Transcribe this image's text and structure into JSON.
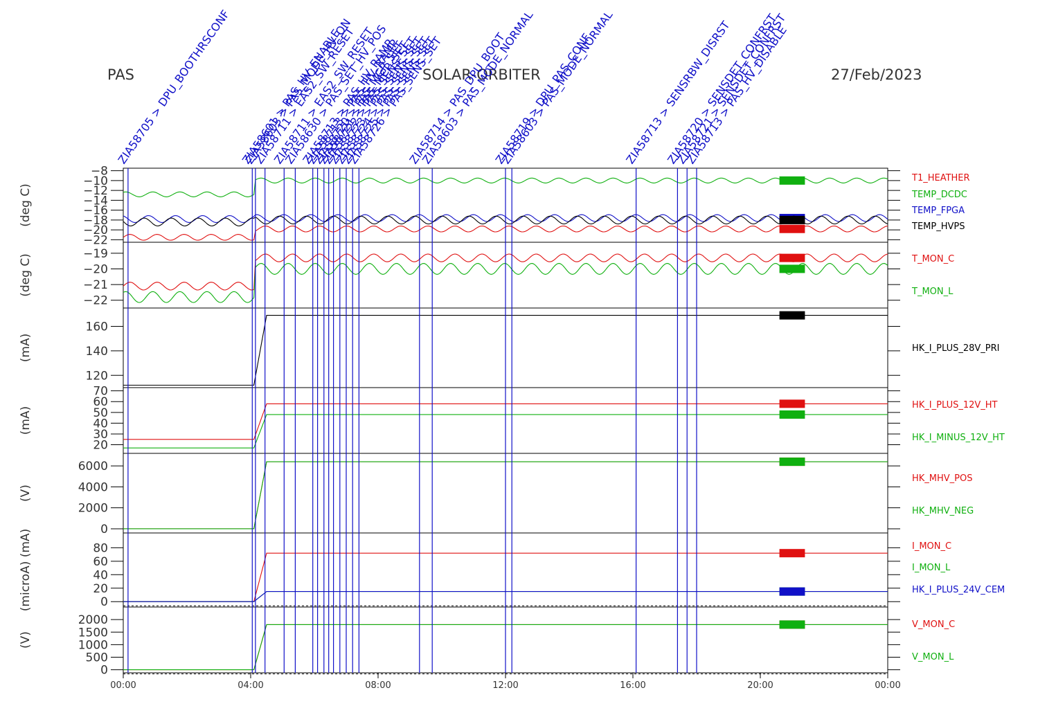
{
  "header": {
    "instrument": "PAS",
    "mission": "SOLAR-ORBITER",
    "date": "27/Feb/2023"
  },
  "colors": {
    "red": "#e01010",
    "green": "#10b010",
    "blue": "#1010c8",
    "black": "#000000"
  },
  "annotations": [
    {
      "t": 0.15,
      "text": "ZIA58705 > DPU_BOOTHRSCONF"
    },
    {
      "t": 4.05,
      "text": "ZIA58601 > PAS_HV_ENABLE"
    },
    {
      "t": 4.15,
      "text": "ZIA58603 > PAS_MODE_HV_ON"
    },
    {
      "t": 4.45,
      "text": "ZIA58711 > EAS2_SW_RESET"
    },
    {
      "t": 5.05,
      "text": "ZIA58711 > EAS2_SW_RESET"
    },
    {
      "t": 5.4,
      "text": "ZIA58630 > PAS_SET_HV_POS"
    },
    {
      "t": 5.95,
      "text": "ZIA58713 > PAS_HV_RAMP"
    },
    {
      "t": 6.1,
      "text": "ZIA58713 > PAS_HV_RAMP"
    },
    {
      "t": 6.3,
      "text": "ZIA58720 > PAS_MCP_SET"
    },
    {
      "t": 6.45,
      "text": "ZIA58721 > PAS_MCP_SET"
    },
    {
      "t": 6.6,
      "text": "ZIA58722 > PAS_SENS_SET"
    },
    {
      "t": 6.8,
      "text": "ZIA58723 > PAS_SENS_SET"
    },
    {
      "t": 7.0,
      "text": "ZIA58724 > PAS_SENS_SET"
    },
    {
      "t": 7.2,
      "text": "ZIA58725 > PAS_SENS_SET"
    },
    {
      "t": 7.4,
      "text": "ZIA58726 > PAS_SENS_SET"
    },
    {
      "t": 9.3,
      "text": "ZIA58714 > PAS_DPU_BOOT"
    },
    {
      "t": 9.7,
      "text": "ZIA58603 > PAS_MODE_NORMAL"
    },
    {
      "t": 12.0,
      "text": "ZIA58719 > DPU_PAS_CONF"
    },
    {
      "t": 12.2,
      "text": "ZIA58603 > PAS_MODE_NORMAL"
    },
    {
      "t": 16.1,
      "text": "ZIA58713 > SENSRBW_DISRST"
    },
    {
      "t": 17.4,
      "text": "ZIA58720 > SENSDET_CONFRST"
    },
    {
      "t": 17.7,
      "text": "ZIA58721 > SENSDET_CONFRST"
    },
    {
      "t": 18.0,
      "text": "ZIA58713 > PAS_HV_DISABLE"
    }
  ],
  "chart_data": [
    {
      "type": "line",
      "panel": "temperatures",
      "ylabel": "(deg C)",
      "ylim": [
        -22.5,
        -7.5
      ],
      "ticks": [
        -8,
        -10,
        -12,
        -14,
        -16,
        -18,
        -20,
        -22
      ],
      "series": [
        {
          "name": "T1_HEATHER",
          "color": "#e01010",
          "before": -21.5,
          "after": -19.8,
          "amp": 0.6
        },
        {
          "name": "TEMP_DCDC",
          "color": "#10b010",
          "before": -12.8,
          "after": -10.0,
          "amp": 0.5
        },
        {
          "name": "TEMP_FPGA",
          "color": "#1010c8",
          "before": -17.8,
          "after": -17.6,
          "amp": 0.7
        },
        {
          "name": "TEMP_HVPS",
          "color": "#000000",
          "before": -18.4,
          "after": -18.0,
          "amp": 0.8
        }
      ]
    },
    {
      "type": "line",
      "panel": "monitor-temperatures",
      "ylabel": "(deg C)",
      "ylim": [
        -22.5,
        -18.3
      ],
      "ticks": [
        -19,
        -20,
        -21,
        -22
      ],
      "series": [
        {
          "name": "T_MON_C",
          "color": "#e01010",
          "before": -21.1,
          "after": -19.3,
          "amp": 0.25
        },
        {
          "name": "T_MON_L",
          "color": "#10b010",
          "before": -21.8,
          "after": -20.0,
          "amp": 0.35
        }
      ]
    },
    {
      "type": "line",
      "panel": "primary-current",
      "ylabel": "(mA)",
      "ylim": [
        110,
        175
      ],
      "ticks": [
        120,
        140,
        160
      ],
      "series": [
        {
          "name": "HK_I_PLUS_28V_PRI",
          "color": "#000000",
          "before": 112,
          "after": 169
        }
      ]
    },
    {
      "type": "line",
      "panel": "heater-currents",
      "ylabel": "(mA)",
      "ylim": [
        12,
        73
      ],
      "ticks": [
        20,
        30,
        40,
        50,
        60,
        70
      ],
      "series": [
        {
          "name": "HK_I_PLUS_12V_HT",
          "color": "#e01010",
          "before": 25,
          "after": 58
        },
        {
          "name": "HK_I_MINUS_12V_HT",
          "color": "#10b010",
          "before": 17,
          "after": 48
        }
      ]
    },
    {
      "type": "line",
      "panel": "mcp-voltages",
      "ylabel": "(V)",
      "ylim": [
        -400,
        7200
      ],
      "ticks": [
        0,
        2000,
        4000,
        6000
      ],
      "series": [
        {
          "name": "HK_MHV_POS",
          "color": "#e01010",
          "before": 0,
          "after": 6400
        },
        {
          "name": "HK_MHV_NEG",
          "color": "#10b010",
          "before": 0,
          "after": 6400
        }
      ]
    },
    {
      "type": "line",
      "panel": "monitor-currents",
      "ylabel": "(microA) (mA)",
      "ylim": [
        -8,
        102
      ],
      "ticks": [
        0,
        20,
        40,
        60,
        80
      ],
      "series": [
        {
          "name": "I_MON_C",
          "color": "#e01010",
          "before": 0,
          "after": 72
        },
        {
          "name": "I_MON_L",
          "color": "#10b010",
          "before": 0,
          "after": 15
        },
        {
          "name": "HK_I_PLUS_24V_CEM",
          "color": "#1010c8",
          "before": 0,
          "after": 15
        }
      ]
    },
    {
      "type": "line",
      "panel": "monitor-voltages",
      "ylabel": "(V)",
      "ylim": [
        -120,
        2500
      ],
      "ticks": [
        0,
        500,
        1000,
        1500,
        2000
      ],
      "series": [
        {
          "name": "V_MON_C",
          "color": "#e01010",
          "before": 0,
          "after": 1800
        },
        {
          "name": "V_MON_L",
          "color": "#10b010",
          "before": 0,
          "after": 1800
        }
      ]
    }
  ],
  "xaxis": {
    "range": [
      0,
      24
    ],
    "tick_hours": [
      0,
      4,
      8,
      12,
      16,
      20,
      24
    ],
    "tick_labels": [
      "00:00",
      "04:00",
      "08:00",
      "12:00",
      "16:00",
      "20:00",
      "00:00"
    ],
    "event_hour": 4.1
  }
}
